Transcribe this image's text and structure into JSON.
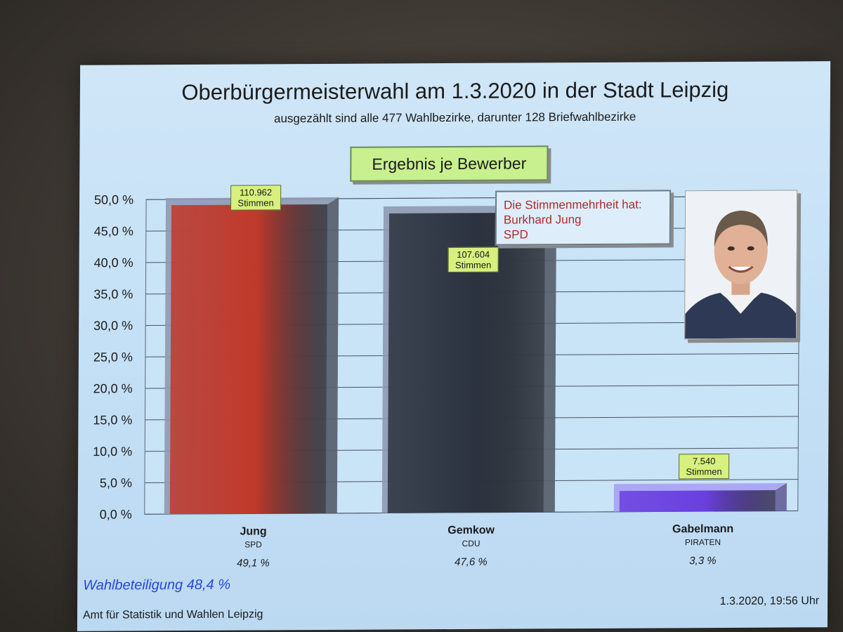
{
  "title": "Oberbürgermeisterwahl am 1.3.2020 in der Stadt Leipzig",
  "subtitle": "ausgezählt sind alle 477 Wahlbezirke, darunter 128 Briefwahlbezirke",
  "section_label": "Ergebnis je Bewerber",
  "majority": {
    "line1": "Die Stimmenmehrheit hat:",
    "line2": "Burkhard Jung",
    "line3": "SPD"
  },
  "turnout": "Wahlbeteiligung 48,4 %",
  "source": "Amt für Statistik und Wahlen Leipzig",
  "timestamp": "1.3.2020, 19:56 Uhr",
  "chart_data": {
    "type": "bar",
    "ylim": [
      0,
      50
    ],
    "yticks": [
      "0,0 %",
      "5,0 %",
      "10,0 %",
      "15,0 %",
      "20,0 %",
      "25,0 %",
      "30,0 %",
      "35,0 %",
      "40,0 %",
      "45,0 %",
      "50,0 %"
    ],
    "grid": true,
    "categories": [
      "Jung",
      "Gemkow",
      "Gabelmann"
    ],
    "parties": [
      "SPD",
      "CDU",
      "PIRATEN"
    ],
    "values": [
      49.1,
      47.6,
      3.3
    ],
    "value_labels": [
      "49,1 %",
      "47,6 %",
      "3,3 %"
    ],
    "votes": [
      "110.962",
      "107.604",
      "7.540"
    ],
    "votes_unit": "Stimmen",
    "colors": [
      "#c0392b",
      "#2c3340",
      "#6a3fe0"
    ]
  }
}
